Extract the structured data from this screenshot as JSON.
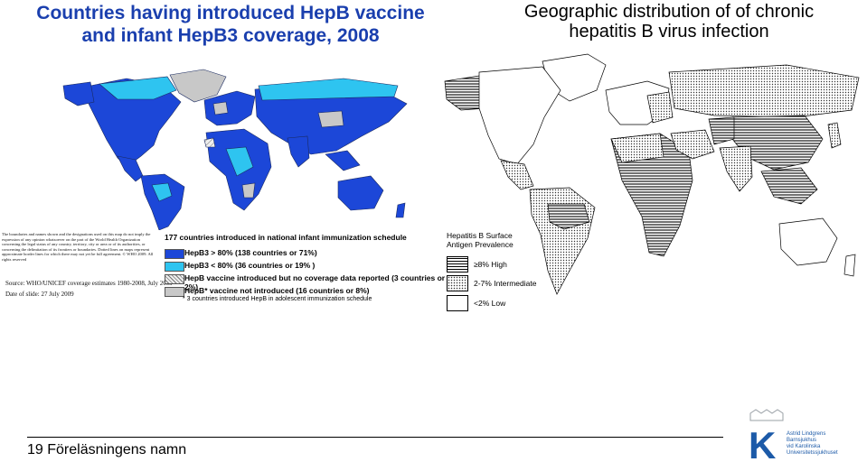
{
  "left_map": {
    "title_line1": "Countries having introduced HepB vaccine",
    "title_line2": "and infant HepB3 coverage, 2008",
    "disclaimer": "The boundaries and names shown and the designations used on this map do not imply the expression of any opinion whatsoever on the part of the World Health Organization concerning the legal status of any country, territory, city or area or of its authorities, or concerning the delimitation of its frontiers or boundaries. Dotted lines on maps represent approximate border lines for which there may not yet be full agreement. © WHO 2009. All rights reserved",
    "source": "Source: WHO/UNICEF coverage estimates 1980-2008, July 2009",
    "date": "Date of slide: 27 July 2009",
    "legend_header": "177 countries introduced in national infant immunization schedule",
    "legend": [
      {
        "label": "HepB3 > 80% (138 countries or 71%)",
        "color": "#1c47d8",
        "pattern": "solid"
      },
      {
        "label": "HepB3 < 80% (36 countries or 19% )",
        "color": "#2ec4f0",
        "pattern": "solid"
      },
      {
        "label": "HepB vaccine introduced but no coverage data reported (3 countries or 2%)",
        "color": "#dddddd",
        "pattern": "hatch"
      },
      {
        "label": "HepB* vaccine not introduced (16 countries or 8%)",
        "color": "#c8c8c8",
        "pattern": "solid"
      }
    ],
    "footnote": "* 3 countries introduced HepB in adolescent immunization schedule"
  },
  "right_map": {
    "title_line1": "Geographic distribution of of chronic",
    "title_line2": "hepatitis B virus infection",
    "legend_title_line1": "Hepatitis B Surface",
    "legend_title_line2": "Antigen Prevalence",
    "legend": [
      {
        "label": "≥8%  High",
        "pattern": "horizontal-lines"
      },
      {
        "label": "2-7%  Intermediate",
        "pattern": "dots"
      },
      {
        "label": "<2%  Low",
        "pattern": "blank"
      }
    ]
  },
  "footer": {
    "slide_label": "19 Föreläsningens namn"
  },
  "logo": {
    "letter": "K",
    "text_line1": "Astrid Lindgrens",
    "text_line2": "Barnsjukhus",
    "text_line3": "vid Karolinska",
    "text_line4": "Universitetssjukhuset",
    "color": "#1c5aa8"
  }
}
